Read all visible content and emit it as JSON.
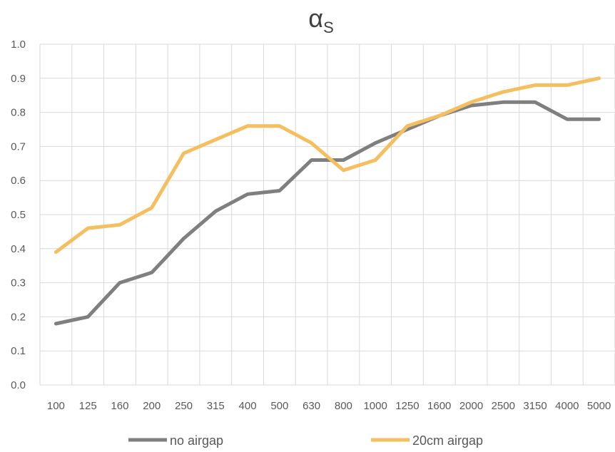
{
  "chart_data": {
    "type": "line",
    "title_main": "α",
    "title_sub": "S",
    "categories": [
      "100",
      "125",
      "160",
      "200",
      "250",
      "315",
      "400",
      "500",
      "630",
      "800",
      "1000",
      "1250",
      "1600",
      "2000",
      "2500",
      "3150",
      "4000",
      "5000"
    ],
    "ylim": [
      0,
      1.0
    ],
    "yticks": [
      "0.0",
      "0.1",
      "0.2",
      "0.3",
      "0.4",
      "0.5",
      "0.6",
      "0.7",
      "0.8",
      "0.9",
      "1.0"
    ],
    "grid": true,
    "legend_position": "bottom",
    "series": [
      {
        "name": "no airgap",
        "color": "#7f7f7f",
        "values": [
          0.18,
          0.2,
          0.3,
          0.33,
          0.43,
          0.51,
          0.56,
          0.57,
          0.66,
          0.66,
          0.71,
          0.75,
          0.79,
          0.82,
          0.83,
          0.83,
          0.78,
          0.78
        ]
      },
      {
        "name": "20cm airgap",
        "color": "#f5be5f",
        "values": [
          0.39,
          0.46,
          0.47,
          0.52,
          0.68,
          0.72,
          0.76,
          0.76,
          0.71,
          0.63,
          0.66,
          0.76,
          0.79,
          0.83,
          0.86,
          0.88,
          0.88,
          0.9
        ]
      }
    ]
  }
}
